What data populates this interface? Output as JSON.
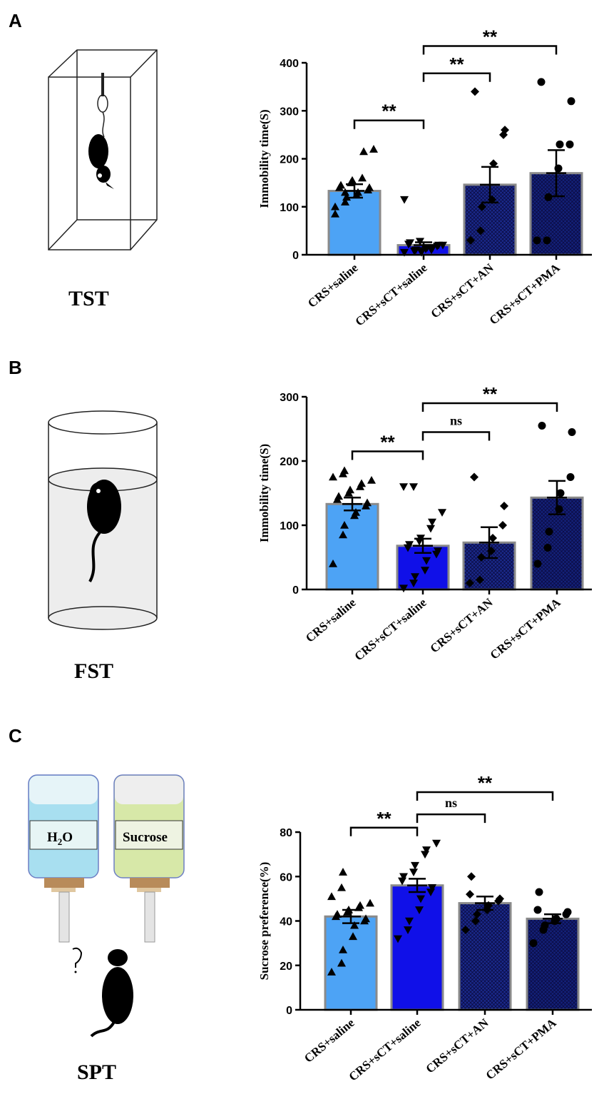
{
  "panels": [
    {
      "letter": "A",
      "test": "TST"
    },
    {
      "letter": "B",
      "test": "FST"
    },
    {
      "letter": "C",
      "test": "SPT"
    }
  ],
  "bottles": {
    "left_main": "H",
    "left_sub": "2",
    "left_tail": "O",
    "right": "Sucrose"
  },
  "colors": {
    "bar1": "#4da3f5",
    "bar2": "#1010e8",
    "bar3": "#1a2a8c",
    "bar4": "#13217a",
    "edge": "#8a8a8a"
  },
  "chart_data": [
    {
      "type": "bar",
      "panel": "A",
      "categories": [
        "CRS+saline",
        "CRS+sCT+saline",
        "CRS+sCT+AN",
        "CRS+sCT+PMA"
      ],
      "values": [
        133,
        20,
        146,
        170
      ],
      "errors": [
        14,
        6,
        37,
        48
      ],
      "ylabel": "Immobility time(S)",
      "ylim": [
        0,
        400
      ],
      "yticks": [
        0,
        100,
        200,
        300,
        400
      ],
      "markers": [
        "triangle",
        "tri-down",
        "diamond",
        "circle"
      ],
      "points": [
        [
          100,
          110,
          120,
          125,
          130,
          135,
          140,
          140,
          145,
          150,
          155,
          160,
          215,
          220,
          85,
          130
        ],
        [
          5,
          8,
          10,
          12,
          15,
          18,
          20,
          22,
          25,
          28,
          5,
          10,
          15,
          20,
          115
        ],
        [
          30,
          50,
          100,
          115,
          190,
          250,
          260,
          340
        ],
        [
          30,
          30,
          120,
          180,
          230,
          230,
          320,
          360
        ]
      ],
      "brackets": [
        {
          "from": 0,
          "to": 1,
          "level": 280,
          "label": "**"
        },
        {
          "from": 1,
          "to": 2,
          "level": 378,
          "label": "**"
        },
        {
          "from": 1,
          "to": 3,
          "level": 435,
          "label": "**"
        }
      ]
    },
    {
      "type": "bar",
      "panel": "B",
      "categories": [
        "CRS+saline",
        "CRS+sCT+saline",
        "CRS+sCT+AN",
        "CRS+sCT+PMA"
      ],
      "values": [
        133,
        68,
        73,
        143
      ],
      "errors": [
        10,
        11,
        24,
        26
      ],
      "ylabel": "Immobility time(S)",
      "ylim": [
        0,
        300
      ],
      "yticks": [
        0,
        100,
        200,
        300
      ],
      "markers": [
        "triangle",
        "tri-down",
        "diamond",
        "circle"
      ],
      "points": [
        [
          40,
          85,
          100,
          115,
          120,
          130,
          135,
          140,
          145,
          150,
          155,
          160,
          165,
          170,
          175,
          180,
          185
        ],
        [
          2,
          10,
          20,
          30,
          45,
          55,
          60,
          65,
          70,
          75,
          80,
          95,
          105,
          120,
          160,
          160
        ],
        [
          10,
          15,
          50,
          60,
          80,
          100,
          130,
          175
        ],
        [
          40,
          65,
          90,
          125,
          150,
          175,
          245,
          255
        ]
      ],
      "brackets": [
        {
          "from": 0,
          "to": 1,
          "level": 215,
          "label": "**"
        },
        {
          "from": 1,
          "to": 2,
          "level": 245,
          "label": "ns"
        },
        {
          "from": 1,
          "to": 3,
          "level": 290,
          "label": "**"
        }
      ]
    },
    {
      "type": "bar",
      "panel": "C",
      "categories": [
        "CRS+saline",
        "CRS+sCT+saline",
        "CRS+sCT+AN",
        "CRS+sCT+PMA"
      ],
      "values": [
        42,
        56,
        48,
        41
      ],
      "errors": [
        3,
        3,
        3,
        2
      ],
      "ylabel": "Sucrose preference(%)",
      "ylim": [
        0,
        80
      ],
      "yticks": [
        0,
        20,
        40,
        60,
        80
      ],
      "markers": [
        "triangle",
        "tri-down",
        "diamond",
        "circle"
      ],
      "points": [
        [
          17,
          21,
          27,
          33,
          38,
          40,
          41,
          42,
          43,
          44,
          45,
          46,
          47,
          48,
          51,
          55,
          62
        ],
        [
          32,
          36,
          40,
          45,
          50,
          53,
          55,
          58,
          60,
          62,
          65,
          70,
          72,
          75
        ],
        [
          36,
          40,
          43,
          45,
          47,
          49,
          50,
          52,
          60
        ],
        [
          30,
          36,
          38,
          40,
          41,
          43,
          44,
          45,
          53
        ]
      ],
      "brackets": [
        {
          "from": 0,
          "to": 1,
          "level": 82,
          "label": "**"
        },
        {
          "from": 1,
          "to": 2,
          "level": 88,
          "label": "ns"
        },
        {
          "from": 1,
          "to": 3,
          "level": 98,
          "label": "**"
        }
      ]
    }
  ]
}
